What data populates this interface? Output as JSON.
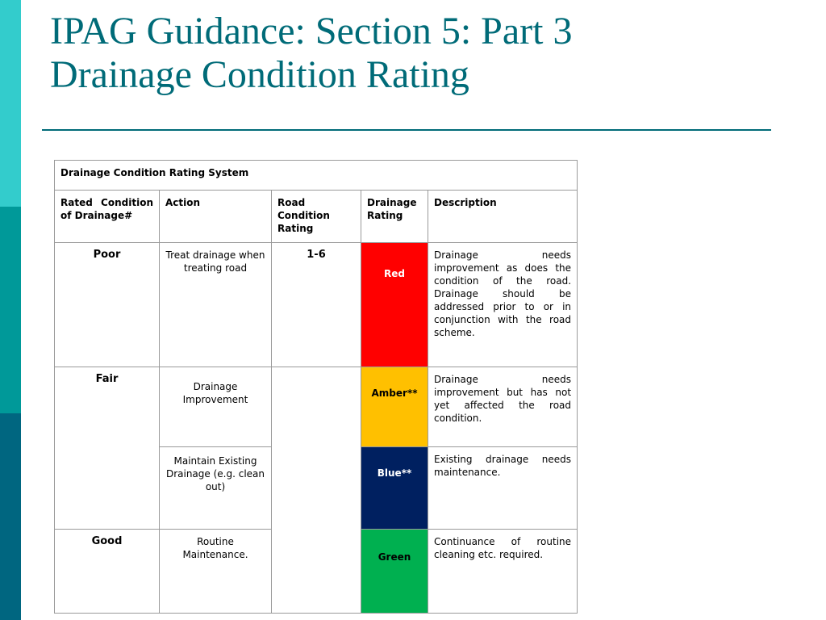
{
  "slide": {
    "title_line1": "IPAG Guidance: Section 5: Part 3",
    "title_line2": "Drainage Condition Rating"
  },
  "table": {
    "caption": "Drainage Condition Rating System",
    "headers": {
      "rated_condition": "Rated Condition of Drainage#",
      "action": "Action",
      "road_condition": "Road Condition Rating",
      "drainage_rating": "Drainage Rating",
      "description": "Description"
    },
    "poor": {
      "condition": "Poor",
      "action": "Treat drainage when treating road",
      "road_rating": "1-6",
      "rating": "Red",
      "description": "Drainage needs improvement as does the condition of the road. Drainage should be addressed prior to or in conjunction with the road scheme."
    },
    "fair": {
      "condition": "Fair",
      "amber": {
        "action": "Drainage Improvement",
        "rating": "Amber**",
        "description": "Drainage needs improvement but has not yet affected the road condition."
      },
      "blue": {
        "action": "Maintain Existing Drainage (e.g. clean out)",
        "rating": "Blue**",
        "description": "Existing drainage needs maintenance."
      }
    },
    "good": {
      "condition": "Good",
      "action": "Routine Maintenance.",
      "rating": "Green",
      "description": "Continuance of routine cleaning etc. required."
    },
    "colors": {
      "red": "#ff0000",
      "amber": "#ffc000",
      "blue": "#002060",
      "green": "#00b050"
    }
  }
}
